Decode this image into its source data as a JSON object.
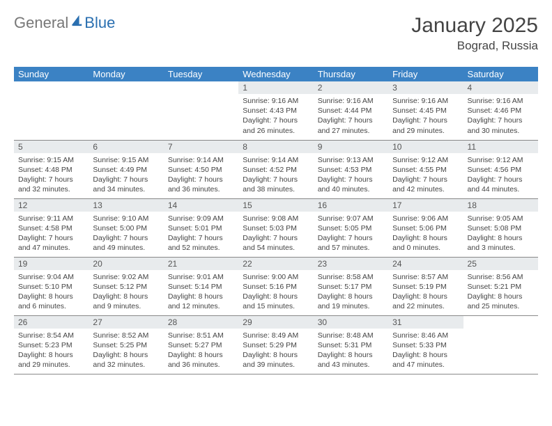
{
  "brand": {
    "part1": "General",
    "part2": "Blue",
    "logo_color": "#2a6fb0",
    "text_color": "#777777"
  },
  "title": "January 2025",
  "location": "Bograd, Russia",
  "header_bg": "#3b82c4",
  "header_fg": "#ffffff",
  "daynum_bg": "#e8ebed",
  "border_color": "#888888",
  "weekdays": [
    "Sunday",
    "Monday",
    "Tuesday",
    "Wednesday",
    "Thursday",
    "Friday",
    "Saturday"
  ],
  "weeks": [
    [
      {
        "day": "",
        "sunrise": "",
        "sunset": "",
        "daylight1": "",
        "daylight2": ""
      },
      {
        "day": "",
        "sunrise": "",
        "sunset": "",
        "daylight1": "",
        "daylight2": ""
      },
      {
        "day": "",
        "sunrise": "",
        "sunset": "",
        "daylight1": "",
        "daylight2": ""
      },
      {
        "day": "1",
        "sunrise": "Sunrise: 9:16 AM",
        "sunset": "Sunset: 4:43 PM",
        "daylight1": "Daylight: 7 hours",
        "daylight2": "and 26 minutes."
      },
      {
        "day": "2",
        "sunrise": "Sunrise: 9:16 AM",
        "sunset": "Sunset: 4:44 PM",
        "daylight1": "Daylight: 7 hours",
        "daylight2": "and 27 minutes."
      },
      {
        "day": "3",
        "sunrise": "Sunrise: 9:16 AM",
        "sunset": "Sunset: 4:45 PM",
        "daylight1": "Daylight: 7 hours",
        "daylight2": "and 29 minutes."
      },
      {
        "day": "4",
        "sunrise": "Sunrise: 9:16 AM",
        "sunset": "Sunset: 4:46 PM",
        "daylight1": "Daylight: 7 hours",
        "daylight2": "and 30 minutes."
      }
    ],
    [
      {
        "day": "5",
        "sunrise": "Sunrise: 9:15 AM",
        "sunset": "Sunset: 4:48 PM",
        "daylight1": "Daylight: 7 hours",
        "daylight2": "and 32 minutes."
      },
      {
        "day": "6",
        "sunrise": "Sunrise: 9:15 AM",
        "sunset": "Sunset: 4:49 PM",
        "daylight1": "Daylight: 7 hours",
        "daylight2": "and 34 minutes."
      },
      {
        "day": "7",
        "sunrise": "Sunrise: 9:14 AM",
        "sunset": "Sunset: 4:50 PM",
        "daylight1": "Daylight: 7 hours",
        "daylight2": "and 36 minutes."
      },
      {
        "day": "8",
        "sunrise": "Sunrise: 9:14 AM",
        "sunset": "Sunset: 4:52 PM",
        "daylight1": "Daylight: 7 hours",
        "daylight2": "and 38 minutes."
      },
      {
        "day": "9",
        "sunrise": "Sunrise: 9:13 AM",
        "sunset": "Sunset: 4:53 PM",
        "daylight1": "Daylight: 7 hours",
        "daylight2": "and 40 minutes."
      },
      {
        "day": "10",
        "sunrise": "Sunrise: 9:12 AM",
        "sunset": "Sunset: 4:55 PM",
        "daylight1": "Daylight: 7 hours",
        "daylight2": "and 42 minutes."
      },
      {
        "day": "11",
        "sunrise": "Sunrise: 9:12 AM",
        "sunset": "Sunset: 4:56 PM",
        "daylight1": "Daylight: 7 hours",
        "daylight2": "and 44 minutes."
      }
    ],
    [
      {
        "day": "12",
        "sunrise": "Sunrise: 9:11 AM",
        "sunset": "Sunset: 4:58 PM",
        "daylight1": "Daylight: 7 hours",
        "daylight2": "and 47 minutes."
      },
      {
        "day": "13",
        "sunrise": "Sunrise: 9:10 AM",
        "sunset": "Sunset: 5:00 PM",
        "daylight1": "Daylight: 7 hours",
        "daylight2": "and 49 minutes."
      },
      {
        "day": "14",
        "sunrise": "Sunrise: 9:09 AM",
        "sunset": "Sunset: 5:01 PM",
        "daylight1": "Daylight: 7 hours",
        "daylight2": "and 52 minutes."
      },
      {
        "day": "15",
        "sunrise": "Sunrise: 9:08 AM",
        "sunset": "Sunset: 5:03 PM",
        "daylight1": "Daylight: 7 hours",
        "daylight2": "and 54 minutes."
      },
      {
        "day": "16",
        "sunrise": "Sunrise: 9:07 AM",
        "sunset": "Sunset: 5:05 PM",
        "daylight1": "Daylight: 7 hours",
        "daylight2": "and 57 minutes."
      },
      {
        "day": "17",
        "sunrise": "Sunrise: 9:06 AM",
        "sunset": "Sunset: 5:06 PM",
        "daylight1": "Daylight: 8 hours",
        "daylight2": "and 0 minutes."
      },
      {
        "day": "18",
        "sunrise": "Sunrise: 9:05 AM",
        "sunset": "Sunset: 5:08 PM",
        "daylight1": "Daylight: 8 hours",
        "daylight2": "and 3 minutes."
      }
    ],
    [
      {
        "day": "19",
        "sunrise": "Sunrise: 9:04 AM",
        "sunset": "Sunset: 5:10 PM",
        "daylight1": "Daylight: 8 hours",
        "daylight2": "and 6 minutes."
      },
      {
        "day": "20",
        "sunrise": "Sunrise: 9:02 AM",
        "sunset": "Sunset: 5:12 PM",
        "daylight1": "Daylight: 8 hours",
        "daylight2": "and 9 minutes."
      },
      {
        "day": "21",
        "sunrise": "Sunrise: 9:01 AM",
        "sunset": "Sunset: 5:14 PM",
        "daylight1": "Daylight: 8 hours",
        "daylight2": "and 12 minutes."
      },
      {
        "day": "22",
        "sunrise": "Sunrise: 9:00 AM",
        "sunset": "Sunset: 5:16 PM",
        "daylight1": "Daylight: 8 hours",
        "daylight2": "and 15 minutes."
      },
      {
        "day": "23",
        "sunrise": "Sunrise: 8:58 AM",
        "sunset": "Sunset: 5:17 PM",
        "daylight1": "Daylight: 8 hours",
        "daylight2": "and 19 minutes."
      },
      {
        "day": "24",
        "sunrise": "Sunrise: 8:57 AM",
        "sunset": "Sunset: 5:19 PM",
        "daylight1": "Daylight: 8 hours",
        "daylight2": "and 22 minutes."
      },
      {
        "day": "25",
        "sunrise": "Sunrise: 8:56 AM",
        "sunset": "Sunset: 5:21 PM",
        "daylight1": "Daylight: 8 hours",
        "daylight2": "and 25 minutes."
      }
    ],
    [
      {
        "day": "26",
        "sunrise": "Sunrise: 8:54 AM",
        "sunset": "Sunset: 5:23 PM",
        "daylight1": "Daylight: 8 hours",
        "daylight2": "and 29 minutes."
      },
      {
        "day": "27",
        "sunrise": "Sunrise: 8:52 AM",
        "sunset": "Sunset: 5:25 PM",
        "daylight1": "Daylight: 8 hours",
        "daylight2": "and 32 minutes."
      },
      {
        "day": "28",
        "sunrise": "Sunrise: 8:51 AM",
        "sunset": "Sunset: 5:27 PM",
        "daylight1": "Daylight: 8 hours",
        "daylight2": "and 36 minutes."
      },
      {
        "day": "29",
        "sunrise": "Sunrise: 8:49 AM",
        "sunset": "Sunset: 5:29 PM",
        "daylight1": "Daylight: 8 hours",
        "daylight2": "and 39 minutes."
      },
      {
        "day": "30",
        "sunrise": "Sunrise: 8:48 AM",
        "sunset": "Sunset: 5:31 PM",
        "daylight1": "Daylight: 8 hours",
        "daylight2": "and 43 minutes."
      },
      {
        "day": "31",
        "sunrise": "Sunrise: 8:46 AM",
        "sunset": "Sunset: 5:33 PM",
        "daylight1": "Daylight: 8 hours",
        "daylight2": "and 47 minutes."
      },
      {
        "day": "",
        "sunrise": "",
        "sunset": "",
        "daylight1": "",
        "daylight2": ""
      }
    ]
  ]
}
